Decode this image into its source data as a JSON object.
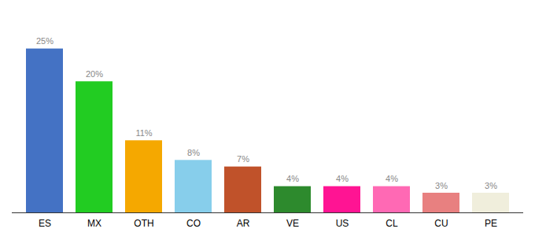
{
  "chart_data": {
    "type": "bar",
    "categories": [
      "ES",
      "MX",
      "OTH",
      "CO",
      "AR",
      "VE",
      "US",
      "CL",
      "CU",
      "PE"
    ],
    "values": [
      25,
      20,
      11,
      8,
      7,
      4,
      4,
      4,
      3,
      3
    ],
    "value_labels": [
      "25%",
      "20%",
      "11%",
      "8%",
      "7%",
      "4%",
      "4%",
      "4%",
      "3%",
      "3%"
    ],
    "colors": [
      "#4472c4",
      "#22cc22",
      "#f5a800",
      "#87ceeb",
      "#c0522a",
      "#2d8a2d",
      "#ff1493",
      "#ff69b4",
      "#e88080",
      "#f0eedc"
    ],
    "ylim": [
      0,
      30
    ],
    "data_labels": true,
    "tick_labels": "x",
    "grid": false
  }
}
